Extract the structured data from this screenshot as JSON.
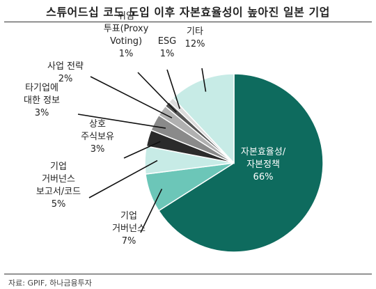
{
  "title": "스튜어드십 코드 도입 이후 자본효율성이 높아진 일본 기업",
  "source": "자료: GPIF, 하나금융투자",
  "chart_data": {
    "type": "pie",
    "title": "스튜어드십 코드 도입 이후 자본효율성이 높아진 일본 기업",
    "start": "12 o'clock",
    "direction": "clockwise",
    "slices": [
      {
        "label": [
          "자본효율성/",
          "자본정책"
        ],
        "value": 66,
        "pct": "66%",
        "color": "#0e6b5e"
      },
      {
        "label": [
          "기업",
          "거버넌스"
        ],
        "value": 7,
        "pct": "7%",
        "color": "#6cc6b8"
      },
      {
        "label": [
          "기업",
          "거버넌스",
          "보고서/코드"
        ],
        "value": 5,
        "pct": "5%",
        "color": "#c7ebe6"
      },
      {
        "label": [
          "상호",
          "주식보유"
        ],
        "value": 3,
        "pct": "3%",
        "color": "#2b2b2b"
      },
      {
        "label": [
          "타기업에",
          "대한 정보"
        ],
        "value": 3,
        "pct": "3%",
        "color": "#8a8a8a"
      },
      {
        "label": [
          "사업 전략"
        ],
        "value": 2,
        "pct": "2%",
        "color": "#b0b0b0"
      },
      {
        "label": [
          "위임",
          "투표(Proxy",
          "Voting)"
        ],
        "value": 1,
        "pct": "1%",
        "color": "#555555"
      },
      {
        "label": [
          "ESG"
        ],
        "value": 1,
        "pct": "1%",
        "color": "#dcdcdc"
      },
      {
        "label": [
          "기타"
        ],
        "value": 12,
        "pct": "12%",
        "color": "#c7ebe6"
      }
    ]
  }
}
